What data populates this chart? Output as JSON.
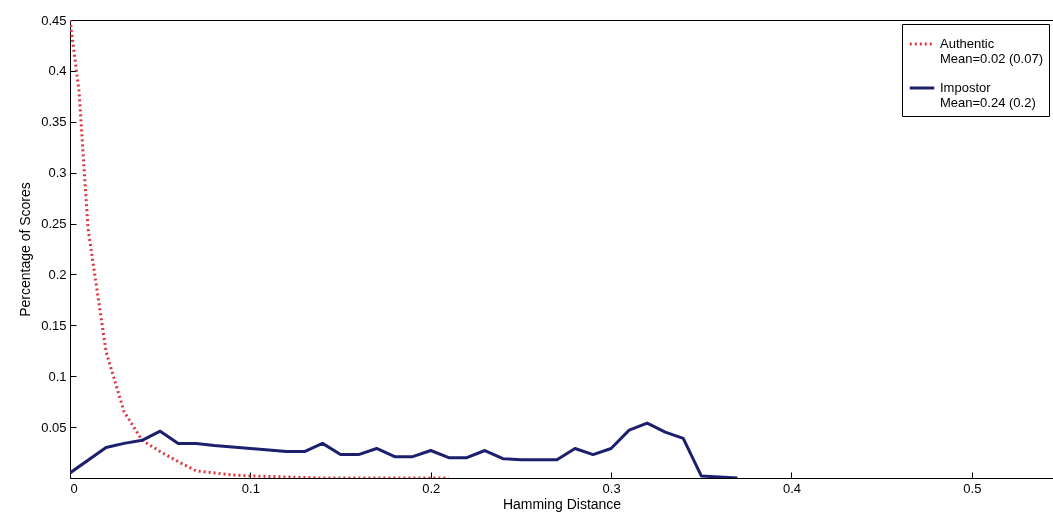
{
  "chart_data": {
    "type": "line",
    "xlabel": "Hamming Distance",
    "ylabel": "Percentage of Scores",
    "xlim": [
      0,
      0.545
    ],
    "xticks": [
      0,
      0.1,
      0.2,
      0.3,
      0.4,
      0.5
    ],
    "ylim": [
      0,
      0.45
    ],
    "yticks": [
      0.05,
      0.1,
      0.15,
      0.2,
      0.25,
      0.3,
      0.35,
      0.4,
      0.45
    ],
    "legend": "top right",
    "grid": false,
    "series": [
      {
        "name": "Authentic\nMean=0.02 (0.07)",
        "color": "#e0343c",
        "line_style": "dotted",
        "x": [
          0,
          0.005,
          0.01,
          0.02,
          0.03,
          0.04,
          0.05,
          0.06,
          0.07,
          0.08,
          0.09,
          0.1,
          0.12,
          0.14,
          0.17,
          0.21
        ],
        "values": [
          0.45,
          0.38,
          0.245,
          0.124,
          0.065,
          0.037,
          0.026,
          0.016,
          0.007,
          0.005,
          0.003,
          0.002,
          0.001,
          0,
          0,
          0
        ]
      },
      {
        "name": "Impostor\nMean=0.24 (0.2)",
        "color": "#1c1f6e",
        "line_style": "solid",
        "x": [
          0,
          0.02,
          0.03,
          0.04,
          0.05,
          0.06,
          0.07,
          0.08,
          0.1,
          0.12,
          0.13,
          0.14,
          0.15,
          0.16,
          0.17,
          0.18,
          0.19,
          0.2,
          0.21,
          0.22,
          0.23,
          0.24,
          0.25,
          0.27,
          0.28,
          0.29,
          0.3,
          0.31,
          0.32,
          0.33,
          0.34,
          0.35,
          0.37
        ],
        "values": [
          0.005,
          0.03,
          0.034,
          0.037,
          0.046,
          0.034,
          0.034,
          0.032,
          0.029,
          0.026,
          0.026,
          0.034,
          0.023,
          0.023,
          0.029,
          0.021,
          0.021,
          0.027,
          0.02,
          0.02,
          0.027,
          0.019,
          0.018,
          0.018,
          0.029,
          0.023,
          0.029,
          0.047,
          0.054,
          0.045,
          0.039,
          0.002,
          0
        ]
      }
    ]
  }
}
